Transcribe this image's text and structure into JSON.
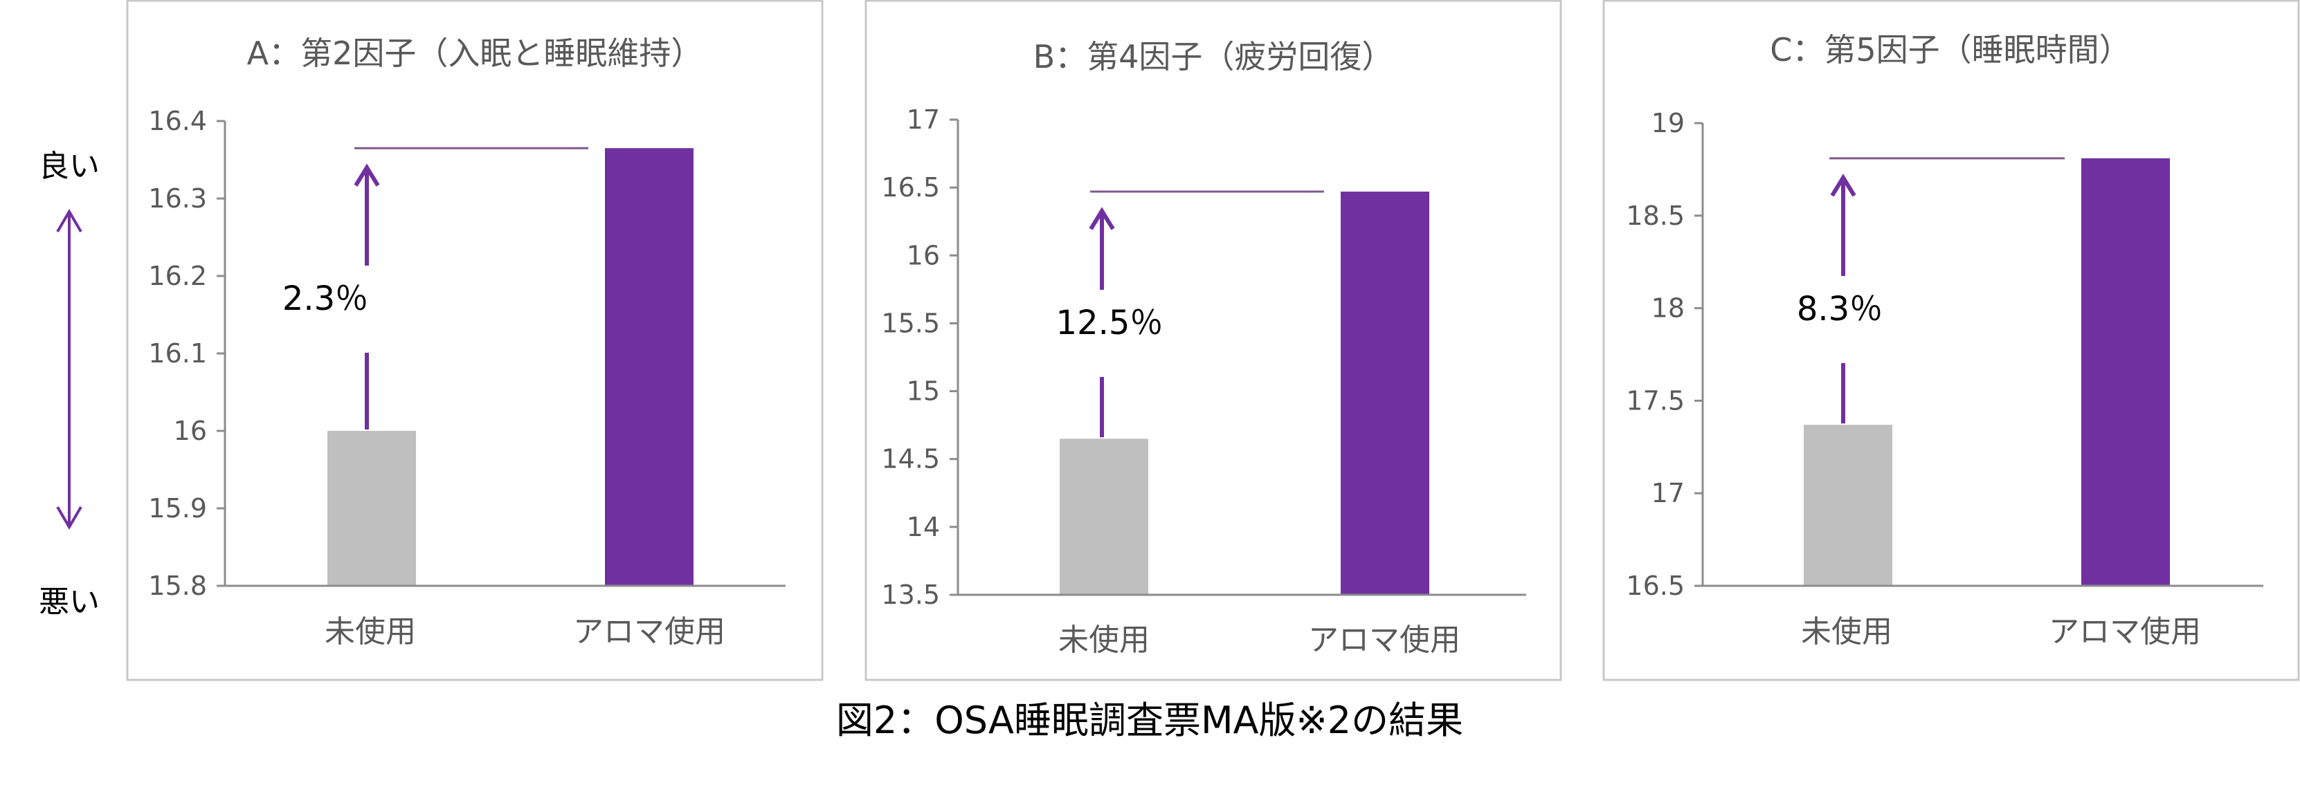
{
  "colors": {
    "base": "#bfbfbf",
    "aroma": "#7030a0",
    "arrow": "#7030a0",
    "text": "#595959"
  },
  "side": {
    "good": "良い",
    "bad": "悪い"
  },
  "caption": "図2：OSA睡眠調査票MA版※2の結果",
  "chart_data": [
    {
      "type": "bar",
      "title": "A：第2因子（入眠と睡眠維持）",
      "categories": [
        "未使用",
        "アロマ使用"
      ],
      "values": [
        16.0,
        16.365
      ],
      "ylim": [
        15.8,
        16.4
      ],
      "yticks": [
        15.8,
        15.9,
        16,
        16.1,
        16.2,
        16.3,
        16.4
      ],
      "ytick_labels": [
        "15.8",
        "15.9",
        "16",
        "16.1",
        "16.2",
        "16.3",
        "16.4"
      ],
      "annotation": "2.3％",
      "grid": false,
      "legend": "none"
    },
    {
      "type": "bar",
      "title": "B：第4因子（疲労回復）",
      "categories": [
        "未使用",
        "アロマ使用"
      ],
      "values": [
        14.65,
        16.47
      ],
      "ylim": [
        13.5,
        17
      ],
      "yticks": [
        13.5,
        14,
        14.5,
        15,
        15.5,
        16,
        16.5,
        17
      ],
      "ytick_labels": [
        "13.5",
        "14",
        "14.5",
        "15",
        "15.5",
        "16",
        "16.5",
        "17"
      ],
      "annotation": "12.5％",
      "grid": false,
      "legend": "none"
    },
    {
      "type": "bar",
      "title": "C：第5因子（睡眠時間）",
      "categories": [
        "未使用",
        "アロマ使用"
      ],
      "values": [
        17.37,
        18.81
      ],
      "ylim": [
        16.5,
        19
      ],
      "yticks": [
        16.5,
        17,
        17.5,
        18,
        18.5,
        19
      ],
      "ytick_labels": [
        "16.5",
        "17",
        "17.5",
        "18",
        "18.5",
        "19"
      ],
      "annotation": "8.3％",
      "grid": false,
      "legend": "none"
    }
  ]
}
